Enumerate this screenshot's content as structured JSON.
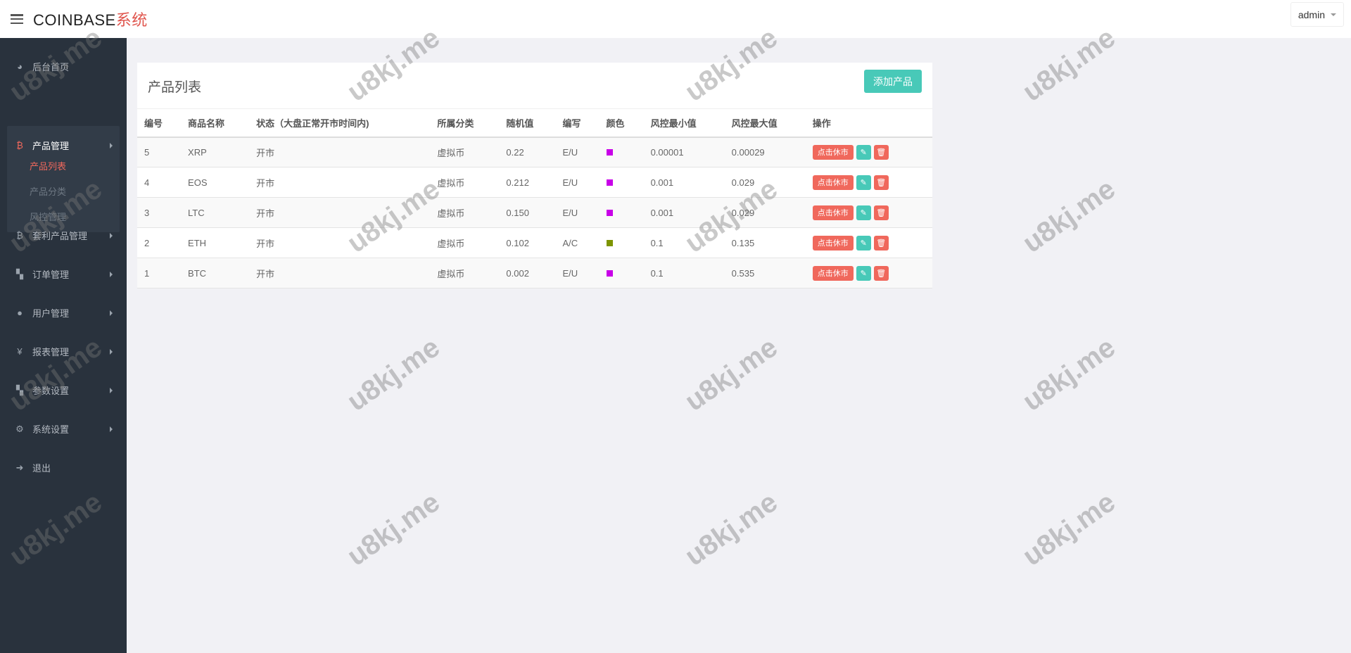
{
  "header": {
    "brand": "COINBASE",
    "brand_suffix": "系统",
    "user": "admin"
  },
  "sidebar": {
    "items": [
      {
        "label": "后台首页",
        "icon": "dashboard-icon"
      },
      {
        "label": "产品管理",
        "icon": "bitcoin-icon",
        "active": true,
        "children": [
          {
            "label": "产品列表",
            "active": true
          },
          {
            "label": "产品分类"
          },
          {
            "label": "风控管理"
          }
        ]
      },
      {
        "label": "套利产品管理",
        "icon": "bitcoin-icon"
      },
      {
        "label": "订单管理",
        "icon": "copy-icon"
      },
      {
        "label": "用户管理",
        "icon": "user-icon"
      },
      {
        "label": "报表管理",
        "icon": "yen-icon"
      },
      {
        "label": "参数设置",
        "icon": "copy-icon"
      },
      {
        "label": "系统设置",
        "icon": "cogs-icon"
      },
      {
        "label": "退出",
        "icon": "sign-out-icon"
      }
    ]
  },
  "panel": {
    "title": "产品列表",
    "add_label": "添加产品",
    "columns": [
      "编号",
      "商品名称",
      "状态（大盘正常开市时间内)",
      "所属分类",
      "随机值",
      "编写",
      "颜色",
      "风控最小值",
      "风控最大值",
      "操作"
    ],
    "rows": [
      {
        "id": "5",
        "name": "XRP",
        "status": "开市",
        "category": "虚拟币",
        "random": "0.22",
        "code": "E/U",
        "color": "#c800e8",
        "min": "0.00001",
        "max": "0.00029"
      },
      {
        "id": "4",
        "name": "EOS",
        "status": "开市",
        "category": "虚拟币",
        "random": "0.212",
        "code": "E/U",
        "color": "#c800e8",
        "min": "0.001",
        "max": "0.029"
      },
      {
        "id": "3",
        "name": "LTC",
        "status": "开市",
        "category": "虚拟币",
        "random": "0.150",
        "code": "E/U",
        "color": "#c800e8",
        "min": "0.001",
        "max": "0.029"
      },
      {
        "id": "2",
        "name": "ETH",
        "status": "开市",
        "category": "虚拟币",
        "random": "0.102",
        "code": "A/C",
        "color": "#7d9400",
        "min": "0.1",
        "max": "0.135"
      },
      {
        "id": "1",
        "name": "BTC",
        "status": "开市",
        "category": "虚拟币",
        "random": "0.002",
        "code": "E/U",
        "color": "#c800e8",
        "min": "0.1",
        "max": "0.535"
      }
    ],
    "rest_label": "点击休市"
  },
  "watermark": "u8kj.me",
  "colors": {
    "accent": "#48c9b8",
    "danger": "#f0685c",
    "sidebar": "#29323d"
  }
}
